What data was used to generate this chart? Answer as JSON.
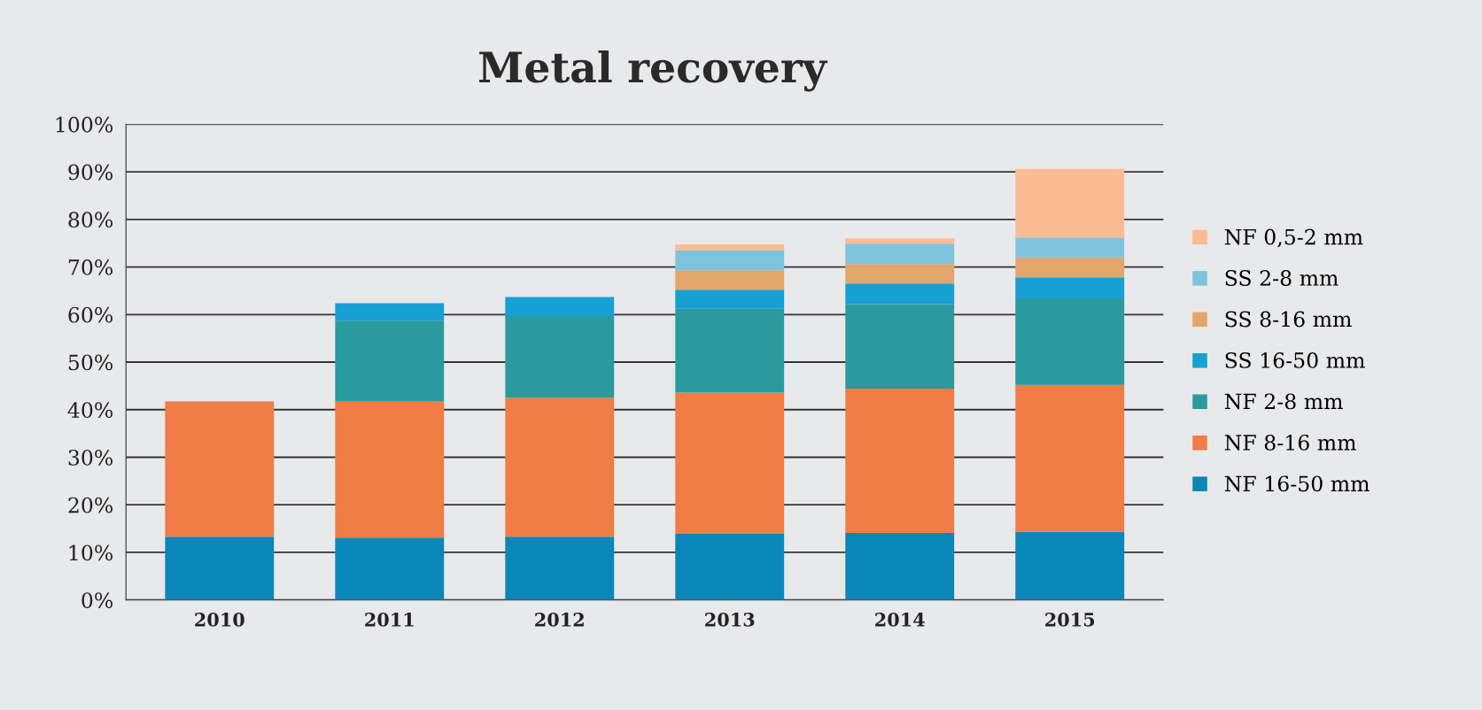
{
  "chart_data": {
    "type": "bar",
    "title": "Metal recovery",
    "stacked": true,
    "categories": [
      "2010",
      "2011",
      "2012",
      "2013",
      "2014",
      "2015"
    ],
    "series": [
      {
        "name": "NF 16-50 mm",
        "color": "#0a87b8",
        "values": [
          13.3,
          13.1,
          13.3,
          13.9,
          14.1,
          14.3
        ]
      },
      {
        "name": "NF 8-16 mm",
        "color": "#ef7d45",
        "values": [
          28.4,
          28.7,
          29.2,
          29.7,
          30.3,
          30.9
        ]
      },
      {
        "name": "NF 2-8 mm",
        "color": "#2a9a9e",
        "values": [
          null,
          16.9,
          17.2,
          17.6,
          17.8,
          18.2
        ]
      },
      {
        "name": "SS 16-50 mm",
        "color": "#16a0d4",
        "values": [
          null,
          3.7,
          4.0,
          4.0,
          4.3,
          4.4
        ]
      },
      {
        "name": "SS 8-16 mm",
        "color": "#e0a66a",
        "values": [
          null,
          null,
          null,
          4.1,
          4.1,
          4.2
        ]
      },
      {
        "name": "SS 2-8 mm",
        "color": "#7ec3de",
        "values": [
          null,
          null,
          null,
          4.2,
          4.3,
          4.2
        ]
      },
      {
        "name": "NF 0,5-2 mm",
        "color": "#fdbb92",
        "values": [
          null,
          null,
          null,
          1.2,
          1.1,
          14.4
        ]
      }
    ],
    "ylim": [
      0,
      100
    ],
    "yticks": [
      {
        "value": 0,
        "label": "0%"
      },
      {
        "value": 10,
        "label": "10%"
      },
      {
        "value": 20,
        "label": "20%"
      },
      {
        "value": 30,
        "label": "30%"
      },
      {
        "value": 40,
        "label": "40%"
      },
      {
        "value": 50,
        "label": "50%"
      },
      {
        "value": 60,
        "label": "60%"
      },
      {
        "value": 70,
        "label": "70%"
      },
      {
        "value": 80,
        "label": "80%"
      },
      {
        "value": 90,
        "label": "90%"
      },
      {
        "value": 100,
        "label": "100%"
      }
    ],
    "grid": "y",
    "legend": "right"
  }
}
